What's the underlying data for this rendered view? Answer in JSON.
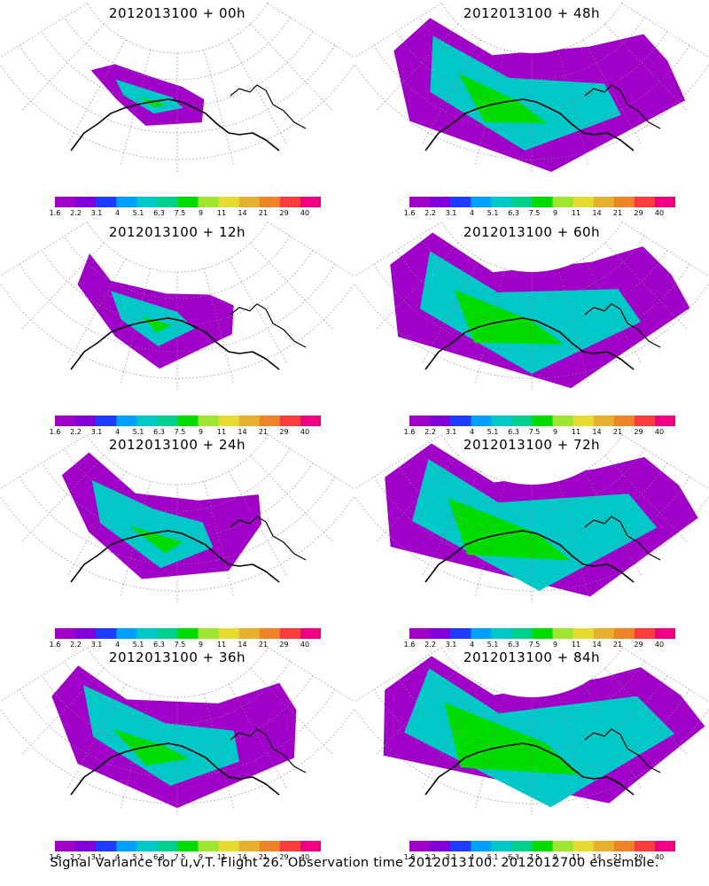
{
  "panels": [
    {
      "title": "2012013100 + 00h",
      "lead_hours": 0
    },
    {
      "title": "2012013100 + 48h",
      "lead_hours": 48
    },
    {
      "title": "2012013100 + 12h",
      "lead_hours": 12
    },
    {
      "title": "2012013100 + 60h",
      "lead_hours": 60
    },
    {
      "title": "2012013100 + 24h",
      "lead_hours": 24
    },
    {
      "title": "2012013100 + 72h",
      "lead_hours": 72
    },
    {
      "title": "2012013100 + 36h",
      "lead_hours": 36
    },
    {
      "title": "2012013100 + 84h",
      "lead_hours": 84
    }
  ],
  "colorbar": {
    "labels": [
      "1.6",
      "2.2",
      "3.1",
      "4",
      "5.1",
      "6.3",
      "7.5",
      "9",
      "11",
      "14",
      "21",
      "29",
      "40"
    ],
    "colors": [
      "#a000c8",
      "#8200dc",
      "#1e3cff",
      "#00a0ff",
      "#00c8c8",
      "#00d28c",
      "#00dc00",
      "#a0e632",
      "#e6dc32",
      "#e6af2d",
      "#f08228",
      "#fa3c3c",
      "#f00082"
    ]
  },
  "footer": "Signal Variance for u,v,T. Flight 26. Observation time 2012013100. 2012012700 ensemble."
}
